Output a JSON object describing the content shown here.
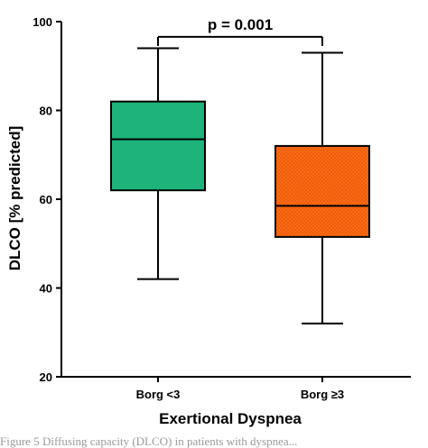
{
  "chart_data": {
    "type": "box",
    "ylabel": "DLCO [% predicted]",
    "xlabel": "Exertional Dyspnea",
    "ylim": [
      20,
      100
    ],
    "yticks": [
      20,
      40,
      60,
      80,
      100
    ],
    "grid": false,
    "categories": [
      "Borg <3",
      "Borg ≥3"
    ],
    "boxes": [
      {
        "category": "Borg <3",
        "min": 42,
        "q1": 62,
        "median": 73.5,
        "q3": 82,
        "max": 94,
        "color": "#1db37a",
        "pattern": "solid"
      },
      {
        "category": "Borg ≥3",
        "min": 32,
        "q1": 51.5,
        "median": 58.5,
        "q3": 72,
        "max": 93,
        "color": "#ff6a13",
        "pattern": "dotted"
      }
    ],
    "annotation": {
      "text": "p = 0.001",
      "between": [
        "Borg <3",
        "Borg ≥3"
      ],
      "y": 99
    }
  },
  "caption": "Figure 5 Diffusing capacity (DLCO) in patients with dyspnea..."
}
